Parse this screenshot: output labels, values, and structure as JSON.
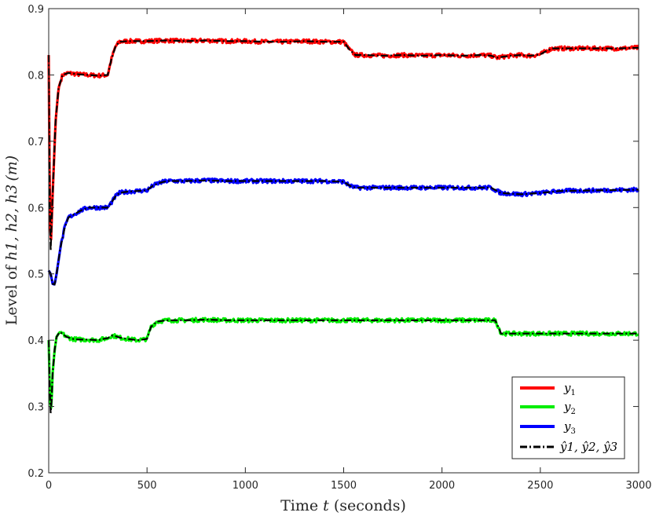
{
  "chart_data": {
    "type": "line",
    "xlabel": "Time t (seconds)",
    "ylabel": "Level of h1, h2, h3 (m)",
    "xlim": [
      0,
      3000
    ],
    "ylim": [
      0.2,
      0.9
    ],
    "xticks": [
      0,
      500,
      1000,
      1500,
      2000,
      2500,
      3000
    ],
    "yticks": [
      0.2,
      0.3,
      0.4,
      0.5,
      0.6,
      0.7,
      0.8,
      0.9
    ],
    "xtick_labels": [
      "0",
      "500",
      "1000",
      "1500",
      "2000",
      "2500",
      "3000"
    ],
    "ytick_labels": [
      "0.2",
      "0.3",
      "0.4",
      "0.5",
      "0.6",
      "0.7",
      "0.8",
      "0.9"
    ],
    "grid": false,
    "legend_position": "bottom-right",
    "series": [
      {
        "name": "y1",
        "legend_sub": "1",
        "color": "#ff0000",
        "x": [
          0,
          5,
          10,
          20,
          35,
          50,
          70,
          100,
          150,
          200,
          250,
          300,
          320,
          340,
          360,
          400,
          500,
          600,
          700,
          800,
          900,
          1000,
          1100,
          1200,
          1300,
          1400,
          1500,
          1530,
          1560,
          1600,
          1700,
          1800,
          1900,
          2000,
          2100,
          2200,
          2250,
          2280,
          2300,
          2350,
          2400,
          2450,
          2500,
          2530,
          2560,
          2600,
          2700,
          2800,
          2900,
          3000
        ],
        "y": [
          0.83,
          0.62,
          0.535,
          0.62,
          0.73,
          0.78,
          0.8,
          0.803,
          0.801,
          0.8,
          0.799,
          0.8,
          0.825,
          0.843,
          0.85,
          0.851,
          0.851,
          0.852,
          0.851,
          0.852,
          0.851,
          0.851,
          0.85,
          0.85,
          0.851,
          0.85,
          0.85,
          0.838,
          0.83,
          0.83,
          0.829,
          0.83,
          0.829,
          0.83,
          0.829,
          0.83,
          0.829,
          0.826,
          0.827,
          0.829,
          0.83,
          0.829,
          0.831,
          0.836,
          0.84,
          0.84,
          0.84,
          0.84,
          0.84,
          0.841
        ]
      },
      {
        "name": "y2",
        "legend_sub": "2",
        "color": "#00ee00",
        "x": [
          0,
          5,
          10,
          15,
          20,
          30,
          40,
          55,
          70,
          90,
          120,
          150,
          200,
          250,
          280,
          300,
          320,
          340,
          360,
          400,
          450,
          480,
          500,
          520,
          550,
          600,
          700,
          800,
          900,
          1000,
          1200,
          1400,
          1600,
          1800,
          2000,
          2200,
          2250,
          2270,
          2290,
          2300,
          2400,
          2500,
          2600,
          2800,
          3000
        ],
        "y": [
          0.4,
          0.33,
          0.29,
          0.31,
          0.35,
          0.385,
          0.405,
          0.412,
          0.41,
          0.405,
          0.402,
          0.401,
          0.401,
          0.4,
          0.402,
          0.403,
          0.407,
          0.406,
          0.404,
          0.402,
          0.4,
          0.401,
          0.402,
          0.42,
          0.428,
          0.43,
          0.43,
          0.431,
          0.43,
          0.43,
          0.43,
          0.43,
          0.43,
          0.43,
          0.43,
          0.43,
          0.43,
          0.43,
          0.418,
          0.41,
          0.41,
          0.41,
          0.41,
          0.41,
          0.41
        ]
      },
      {
        "name": "y3",
        "legend_sub": "3",
        "color": "#0000ff",
        "x": [
          0,
          10,
          20,
          30,
          40,
          60,
          80,
          100,
          130,
          160,
          200,
          250,
          300,
          320,
          340,
          360,
          400,
          450,
          500,
          530,
          560,
          600,
          700,
          800,
          900,
          1000,
          1200,
          1400,
          1500,
          1530,
          1560,
          1600,
          1800,
          2000,
          2200,
          2250,
          2280,
          2300,
          2400,
          2500,
          2600,
          2800,
          3000
        ],
        "y": [
          0.505,
          0.5,
          0.485,
          0.484,
          0.5,
          0.54,
          0.568,
          0.585,
          0.59,
          0.595,
          0.6,
          0.6,
          0.6,
          0.608,
          0.617,
          0.622,
          0.624,
          0.625,
          0.626,
          0.633,
          0.637,
          0.64,
          0.64,
          0.641,
          0.64,
          0.64,
          0.64,
          0.64,
          0.639,
          0.633,
          0.63,
          0.63,
          0.63,
          0.63,
          0.63,
          0.63,
          0.625,
          0.622,
          0.62,
          0.622,
          0.625,
          0.626,
          0.627
        ]
      }
    ],
    "estimate": {
      "name": "ŷ1, ŷ2, ŷ3",
      "color": "#000000",
      "style": "dash-dot"
    },
    "legend_entries": [
      {
        "base": "y",
        "sub": "1"
      },
      {
        "base": "y",
        "sub": "2"
      },
      {
        "base": "y",
        "sub": "3"
      },
      {
        "text": "ŷ1, ŷ2, ŷ3"
      }
    ]
  },
  "texts": {
    "xlabel_main": "Time ",
    "xlabel_var": "t",
    "xlabel_unit": " (seconds)",
    "ylabel_main": "Level of ",
    "ylabel_vars": "h1, h2, h3",
    "ylabel_unit": "(m)"
  }
}
